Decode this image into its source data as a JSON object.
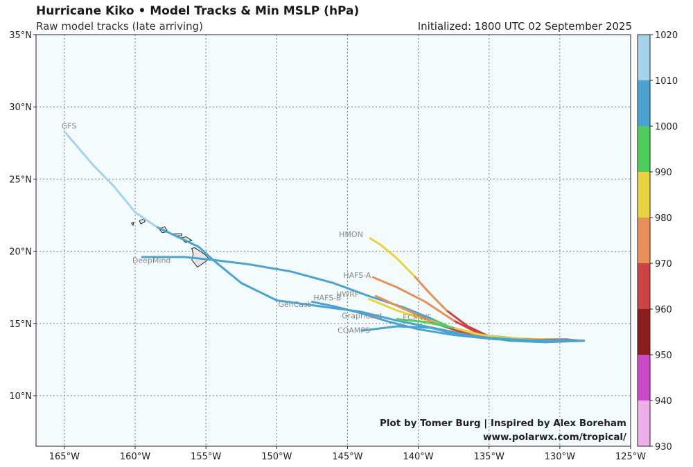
{
  "header": {
    "title": "Hurricane Kiko • Model Tracks & Min MSLP (hPa)",
    "subtitle": "Raw model tracks (late arriving)",
    "initialized": "Initialized: 1800 UTC 02 September 2025"
  },
  "credit": {
    "line1": "Plot by Tomer Burg | Inspired by Alex Boreham",
    "line2": "www.polarwx.com/tropical/"
  },
  "chart_data": {
    "type": "line",
    "projection": "lon-lat",
    "xlim": [
      -167,
      -125
    ],
    "ylim": [
      6.5,
      35
    ],
    "grid": true,
    "legend": "colorbar-right",
    "x_ticks": [
      {
        "value": -165,
        "label": "165°W"
      },
      {
        "value": -160,
        "label": "160°W"
      },
      {
        "value": -155,
        "label": "155°W"
      },
      {
        "value": -150,
        "label": "150°W"
      },
      {
        "value": -145,
        "label": "145°W"
      },
      {
        "value": -140,
        "label": "140°W"
      },
      {
        "value": -135,
        "label": "135°W"
      },
      {
        "value": -130,
        "label": "130°W"
      },
      {
        "value": -125,
        "label": "125°W"
      }
    ],
    "y_ticks": [
      {
        "value": 10,
        "label": "10°N"
      },
      {
        "value": 15,
        "label": "15°N"
      },
      {
        "value": 20,
        "label": "20°N"
      },
      {
        "value": 25,
        "label": "25°N"
      },
      {
        "value": 30,
        "label": "30°N"
      },
      {
        "value": 35,
        "label": "35°N"
      }
    ],
    "colorbar": {
      "label_ticks": [
        "1020",
        "1010",
        "1000",
        "990",
        "980",
        "970",
        "960",
        "950",
        "940",
        "930"
      ],
      "bins": [
        {
          "min": 1010,
          "max": 1020,
          "color": "#a6d3ea"
        },
        {
          "min": 1000,
          "max": 1010,
          "color": "#4aa3d1"
        },
        {
          "min": 990,
          "max": 1000,
          "color": "#4fce5f"
        },
        {
          "min": 980,
          "max": 990,
          "color": "#e8d43e"
        },
        {
          "min": 970,
          "max": 980,
          "color": "#e8905a"
        },
        {
          "min": 960,
          "max": 970,
          "color": "#cc4343"
        },
        {
          "min": 950,
          "max": 960,
          "color": "#8a1f1f"
        },
        {
          "min": 940,
          "max": 950,
          "color": "#c94cc6"
        },
        {
          "min": 930,
          "max": 940,
          "color": "#eeaee8"
        }
      ]
    },
    "islands": [
      {
        "name": "Kauai",
        "points": [
          [
            -159.7,
            22.1
          ],
          [
            -159.4,
            22.25
          ],
          [
            -159.3,
            22.05
          ],
          [
            -159.6,
            21.9
          ]
        ]
      },
      {
        "name": "Niihau",
        "points": [
          [
            -160.25,
            21.95
          ],
          [
            -160.1,
            22.0
          ],
          [
            -160.15,
            21.8
          ]
        ]
      },
      {
        "name": "Oahu",
        "points": [
          [
            -158.3,
            21.55
          ],
          [
            -157.9,
            21.7
          ],
          [
            -157.7,
            21.35
          ],
          [
            -158.1,
            21.3
          ]
        ]
      },
      {
        "name": "Molokai",
        "points": [
          [
            -157.3,
            21.2
          ],
          [
            -156.7,
            21.2
          ],
          [
            -156.7,
            21.05
          ],
          [
            -157.3,
            21.1
          ]
        ]
      },
      {
        "name": "Maui",
        "points": [
          [
            -156.7,
            20.95
          ],
          [
            -156.4,
            21.0
          ],
          [
            -156.0,
            20.75
          ],
          [
            -156.4,
            20.6
          ],
          [
            -156.6,
            20.75
          ]
        ]
      },
      {
        "name": "Big Island",
        "points": [
          [
            -156.0,
            20.2
          ],
          [
            -155.8,
            20.25
          ],
          [
            -155.1,
            19.8
          ],
          [
            -154.8,
            19.5
          ],
          [
            -155.0,
            19.3
          ],
          [
            -155.6,
            18.9
          ],
          [
            -156.0,
            19.4
          ],
          [
            -155.9,
            19.8
          ]
        ]
      }
    ],
    "series": [
      {
        "name": "GFS",
        "label_at": [
          -165.2,
          28.5
        ],
        "points": [
          [
            -128.5,
            13.8,
            1005
          ],
          [
            -129.5,
            13.9,
            1004
          ],
          [
            -131,
            13.9,
            1004
          ],
          [
            -133,
            13.9,
            1003
          ],
          [
            -135,
            14.1,
            1003
          ],
          [
            -137.5,
            14.3,
            1004
          ],
          [
            -139.5,
            14.8,
            1005
          ],
          [
            -141.5,
            15.2,
            1005
          ],
          [
            -144,
            15.8,
            1006
          ],
          [
            -147,
            16.2,
            1006
          ],
          [
            -150,
            16.6,
            1007
          ],
          [
            -152.5,
            17.8,
            1007
          ],
          [
            -154.5,
            19.4,
            1008
          ],
          [
            -155.5,
            20.3,
            1008
          ],
          [
            -157.0,
            21.0,
            1009
          ],
          [
            -158.5,
            21.7,
            1010
          ],
          [
            -160,
            22.7,
            1011
          ],
          [
            -161.5,
            24.5,
            1012
          ],
          [
            -163,
            26.0,
            1013
          ],
          [
            -165,
            28.3,
            1014
          ]
        ]
      },
      {
        "name": "DeepMind",
        "label_at": [
          -160.2,
          19.2
        ],
        "points": [
          [
            -128.3,
            13.8,
            975
          ],
          [
            -130,
            13.85,
            980
          ],
          [
            -131.5,
            13.9,
            985
          ],
          [
            -133.5,
            14.0,
            990
          ],
          [
            -135.5,
            14.2,
            995
          ],
          [
            -137,
            14.4,
            998
          ],
          [
            -139,
            15.3,
            1000
          ],
          [
            -141,
            16.1,
            1002
          ],
          [
            -143.5,
            16.9,
            1003
          ],
          [
            -146,
            17.8,
            1004
          ],
          [
            -149,
            18.6,
            1005
          ],
          [
            -152,
            19.1,
            1005
          ],
          [
            -154.5,
            19.4,
            1006
          ],
          [
            -156.5,
            19.6,
            1006
          ],
          [
            -158,
            19.6,
            1006
          ],
          [
            -159.5,
            19.6,
            1006
          ]
        ]
      },
      {
        "name": "GenCast",
        "label_at": [
          -149.9,
          16.15
        ],
        "points": [
          [
            -128.3,
            13.8,
            995
          ],
          [
            -131,
            13.8,
            998
          ],
          [
            -134.5,
            13.9,
            1000
          ],
          [
            -137.5,
            14.2,
            1002
          ],
          [
            -140,
            14.6,
            1003
          ],
          [
            -142,
            15.1,
            1004
          ],
          [
            -144,
            15.7,
            1004
          ],
          [
            -146,
            16.2,
            1005
          ],
          [
            -147.5,
            16.5,
            1005
          ]
        ]
      },
      {
        "name": "HAFS-B",
        "label_at": [
          -147.4,
          16.6
        ],
        "points": [
          [
            -128.3,
            13.8,
            975
          ],
          [
            -131.5,
            13.8,
            972
          ],
          [
            -134.5,
            14.0,
            974
          ],
          [
            -137,
            14.4,
            978
          ],
          [
            -139,
            15.1,
            980
          ],
          [
            -141.5,
            15.9,
            982
          ],
          [
            -143.5,
            16.7,
            985
          ]
        ]
      },
      {
        "name": "HWRF",
        "label_at": [
          -145.8,
          16.85
        ],
        "points": [
          [
            -128.3,
            13.8,
            972
          ],
          [
            -131,
            13.8,
            968
          ],
          [
            -133.5,
            13.9,
            965
          ],
          [
            -136,
            14.1,
            967
          ],
          [
            -138.5,
            14.9,
            972
          ],
          [
            -141,
            16.0,
            976
          ],
          [
            -143,
            16.9,
            978
          ]
        ]
      },
      {
        "name": "HAFS-A",
        "label_at": [
          -145.3,
          18.15
        ],
        "points": [
          [
            -128.3,
            13.8,
            970
          ],
          [
            -130.5,
            13.8,
            968
          ],
          [
            -133,
            13.9,
            965
          ],
          [
            -135.5,
            14.2,
            965
          ],
          [
            -137.5,
            15.2,
            968
          ],
          [
            -139.5,
            16.5,
            972
          ],
          [
            -141.5,
            17.5,
            975
          ],
          [
            -143.2,
            18.2,
            978
          ]
        ]
      },
      {
        "name": "HMON",
        "label_at": [
          -145.6,
          21.0
        ],
        "points": [
          [
            -128.3,
            13.8,
            968
          ],
          [
            -130.5,
            13.85,
            965
          ],
          [
            -133,
            13.9,
            962
          ],
          [
            -135,
            14.1,
            962
          ],
          [
            -136.5,
            14.8,
            966
          ],
          [
            -138,
            15.9,
            970
          ],
          [
            -139.2,
            17.1,
            974
          ],
          [
            -140.3,
            18.3,
            978
          ],
          [
            -141.5,
            19.5,
            982
          ],
          [
            -142.6,
            20.4,
            987
          ],
          [
            -143.4,
            20.9,
            992
          ]
        ]
      },
      {
        "name": "GraphCast",
        "label_at": [
          -145.4,
          15.35
        ],
        "points": [
          [
            -128.3,
            13.8,
            985
          ],
          [
            -130.5,
            13.8,
            985
          ],
          [
            -133,
            13.9,
            986
          ],
          [
            -135.5,
            14.2,
            988
          ],
          [
            -137.5,
            14.7,
            990
          ],
          [
            -139.5,
            15.1,
            992
          ],
          [
            -141.5,
            15.3,
            995
          ]
        ]
      },
      {
        "name": "ECMWF",
        "label_at": [
          -141.1,
          15.25
        ],
        "points": [
          [
            -128.3,
            13.8,
            1000
          ],
          [
            -131,
            13.8,
            1001
          ],
          [
            -133.5,
            13.9,
            1002
          ],
          [
            -136,
            14.1,
            1003
          ],
          [
            -138.5,
            14.6,
            1004
          ],
          [
            -140.5,
            15.0,
            1004
          ]
        ]
      },
      {
        "name": "COAMPS",
        "label_at": [
          -145.7,
          14.35
        ],
        "points": [
          [
            -128.3,
            13.8,
            1002
          ],
          [
            -131,
            13.7,
            1003
          ],
          [
            -133.5,
            13.8,
            1004
          ],
          [
            -136.5,
            14.2,
            1005
          ],
          [
            -139,
            14.7,
            1006
          ],
          [
            -141.5,
            14.8,
            1006
          ],
          [
            -144,
            14.5,
            1006
          ]
        ]
      }
    ]
  }
}
